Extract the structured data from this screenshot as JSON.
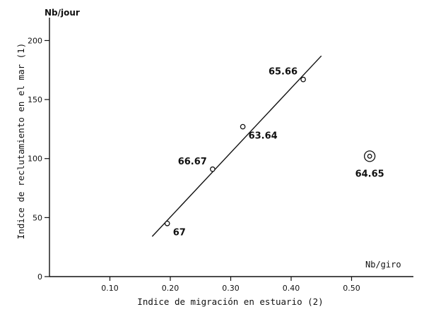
{
  "chart_data": {
    "type": "scatter",
    "xlabel": "Indice de migración en estuario (2)",
    "ylabel": "Indice de reclutamiento en el mar (1)",
    "x_unit": "Nb/giro",
    "y_unit": "Nb/jour",
    "xlim": [
      0,
      0.6
    ],
    "ylim": [
      0,
      220
    ],
    "x_ticks": [
      {
        "value": 0.1,
        "label": "0.10"
      },
      {
        "value": 0.2,
        "label": "0.20"
      },
      {
        "value": 0.3,
        "label": "0.30"
      },
      {
        "value": 0.4,
        "label": "0.40"
      },
      {
        "value": 0.5,
        "label": "0.50"
      }
    ],
    "y_ticks": [
      {
        "value": 0,
        "label": "0"
      },
      {
        "value": 50,
        "label": "50"
      },
      {
        "value": 100,
        "label": "100"
      },
      {
        "value": 150,
        "label": "150"
      },
      {
        "value": 200,
        "label": "200"
      }
    ],
    "points": [
      {
        "label": "67",
        "x": 0.195,
        "y": 45,
        "label_pos": "below-right"
      },
      {
        "label": "66.67",
        "x": 0.27,
        "y": 91,
        "label_pos": "left"
      },
      {
        "label": "63.64",
        "x": 0.32,
        "y": 127,
        "label_pos": "below-right"
      },
      {
        "label": "65.66",
        "x": 0.42,
        "y": 167,
        "label_pos": "left"
      },
      {
        "label": "64.65",
        "x": 0.53,
        "y": 102,
        "label_pos": "below",
        "circled": true
      }
    ],
    "fit_line": {
      "x_start": 0.17,
      "y_start": 34,
      "x_end": 0.45,
      "y_end": 187
    },
    "grid": false,
    "legend": "none"
  }
}
